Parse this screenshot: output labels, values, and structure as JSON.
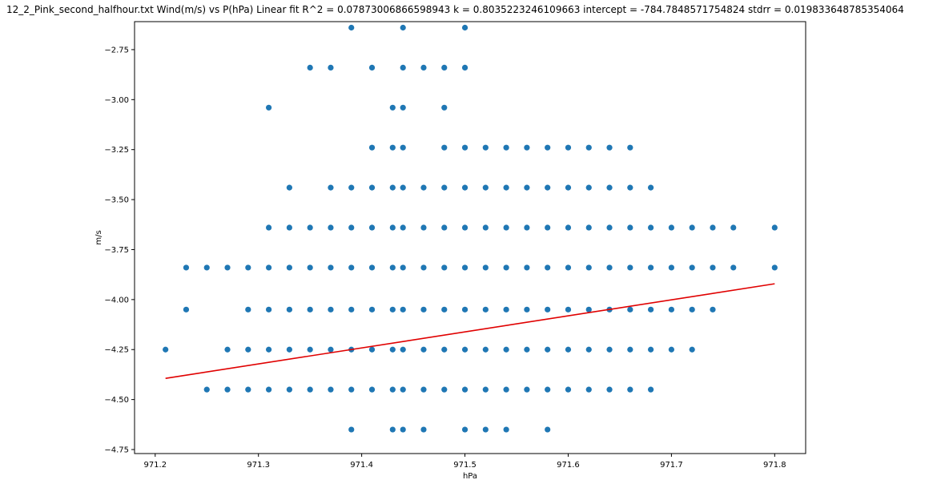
{
  "chart_data": {
    "type": "scatter",
    "title": "12_2_Pink_second_halfhour.txt    Wind(m/s) vs P(hPa)    Linear fit    R^2 = 0.07873006866598943  k = 0.8035223246109663  intercept = -784.7848571754824  stdrr = 0.019833648785354064",
    "xlabel": "hPa",
    "ylabel": "m/s",
    "xlim": [
      971.18,
      971.83
    ],
    "ylim": [
      -4.77,
      -2.61
    ],
    "xticks": [
      971.2,
      971.3,
      971.4,
      971.5,
      971.6,
      971.7,
      971.8
    ],
    "xtick_labels": [
      "971.2",
      "971.3",
      "971.4",
      "971.5",
      "971.6",
      "971.7",
      "971.8"
    ],
    "yticks": [
      -2.75,
      -3.0,
      -3.25,
      -3.5,
      -3.75,
      -4.0,
      -4.25,
      -4.5,
      -4.75
    ],
    "ytick_labels": [
      "−2.75",
      "−3.00",
      "−3.25",
      "−3.50",
      "−3.75",
      "−4.00",
      "−4.25",
      "−4.50",
      "−4.75"
    ],
    "grid": false,
    "series": [
      {
        "kind": "points",
        "color": "#1f77b4",
        "rows": [
          {
            "y": -2.64,
            "x": [
              971.39,
              971.44,
              971.5
            ]
          },
          {
            "y": -2.84,
            "x": [
              971.35,
              971.37,
              971.41,
              971.44,
              971.46,
              971.48,
              971.5
            ]
          },
          {
            "y": -3.04,
            "x": [
              971.31,
              971.43,
              971.44,
              971.48
            ]
          },
          {
            "y": -3.24,
            "x": [
              971.41,
              971.43,
              971.44,
              971.48,
              971.5,
              971.52,
              971.54,
              971.56,
              971.58,
              971.6,
              971.62,
              971.64,
              971.66
            ]
          },
          {
            "y": -3.44,
            "x": [
              971.33,
              971.37,
              971.39,
              971.41,
              971.43,
              971.44,
              971.46,
              971.48,
              971.5,
              971.52,
              971.54,
              971.56,
              971.58,
              971.6,
              971.62,
              971.64,
              971.66,
              971.68
            ]
          },
          {
            "y": -3.64,
            "x": [
              971.31,
              971.33,
              971.35,
              971.37,
              971.39,
              971.41,
              971.43,
              971.44,
              971.46,
              971.48,
              971.5,
              971.52,
              971.54,
              971.56,
              971.58,
              971.6,
              971.62,
              971.64,
              971.66,
              971.68,
              971.7,
              971.72,
              971.74,
              971.76,
              971.8
            ]
          },
          {
            "y": -3.84,
            "x": [
              971.23,
              971.25,
              971.27,
              971.29,
              971.31,
              971.33,
              971.35,
              971.37,
              971.39,
              971.41,
              971.43,
              971.44,
              971.46,
              971.48,
              971.5,
              971.52,
              971.54,
              971.56,
              971.58,
              971.6,
              971.62,
              971.64,
              971.66,
              971.68,
              971.7,
              971.72,
              971.74,
              971.76,
              971.8
            ]
          },
          {
            "y": -4.05,
            "x": [
              971.23,
              971.29,
              971.31,
              971.33,
              971.35,
              971.37,
              971.39,
              971.41,
              971.43,
              971.44,
              971.46,
              971.48,
              971.5,
              971.52,
              971.54,
              971.56,
              971.58,
              971.6,
              971.62,
              971.64,
              971.66,
              971.68,
              971.7,
              971.72,
              971.74
            ]
          },
          {
            "y": -4.25,
            "x": [
              971.21,
              971.27,
              971.29,
              971.31,
              971.33,
              971.35,
              971.37,
              971.39,
              971.41,
              971.43,
              971.44,
              971.46,
              971.48,
              971.5,
              971.52,
              971.54,
              971.56,
              971.58,
              971.6,
              971.62,
              971.64,
              971.66,
              971.68,
              971.7,
              971.72
            ]
          },
          {
            "y": -4.45,
            "x": [
              971.25,
              971.27,
              971.29,
              971.31,
              971.33,
              971.35,
              971.37,
              971.39,
              971.41,
              971.43,
              971.44,
              971.46,
              971.48,
              971.5,
              971.52,
              971.54,
              971.56,
              971.58,
              971.6,
              971.62,
              971.64,
              971.66,
              971.68
            ]
          },
          {
            "y": -4.65,
            "x": [
              971.39,
              971.43,
              971.44,
              971.46,
              971.5,
              971.52,
              971.54,
              971.58
            ]
          }
        ]
      },
      {
        "kind": "fit-line",
        "color": "#e00000",
        "x": [
          971.21,
          971.8
        ],
        "y": [
          -4.394,
          -3.921
        ]
      }
    ]
  }
}
